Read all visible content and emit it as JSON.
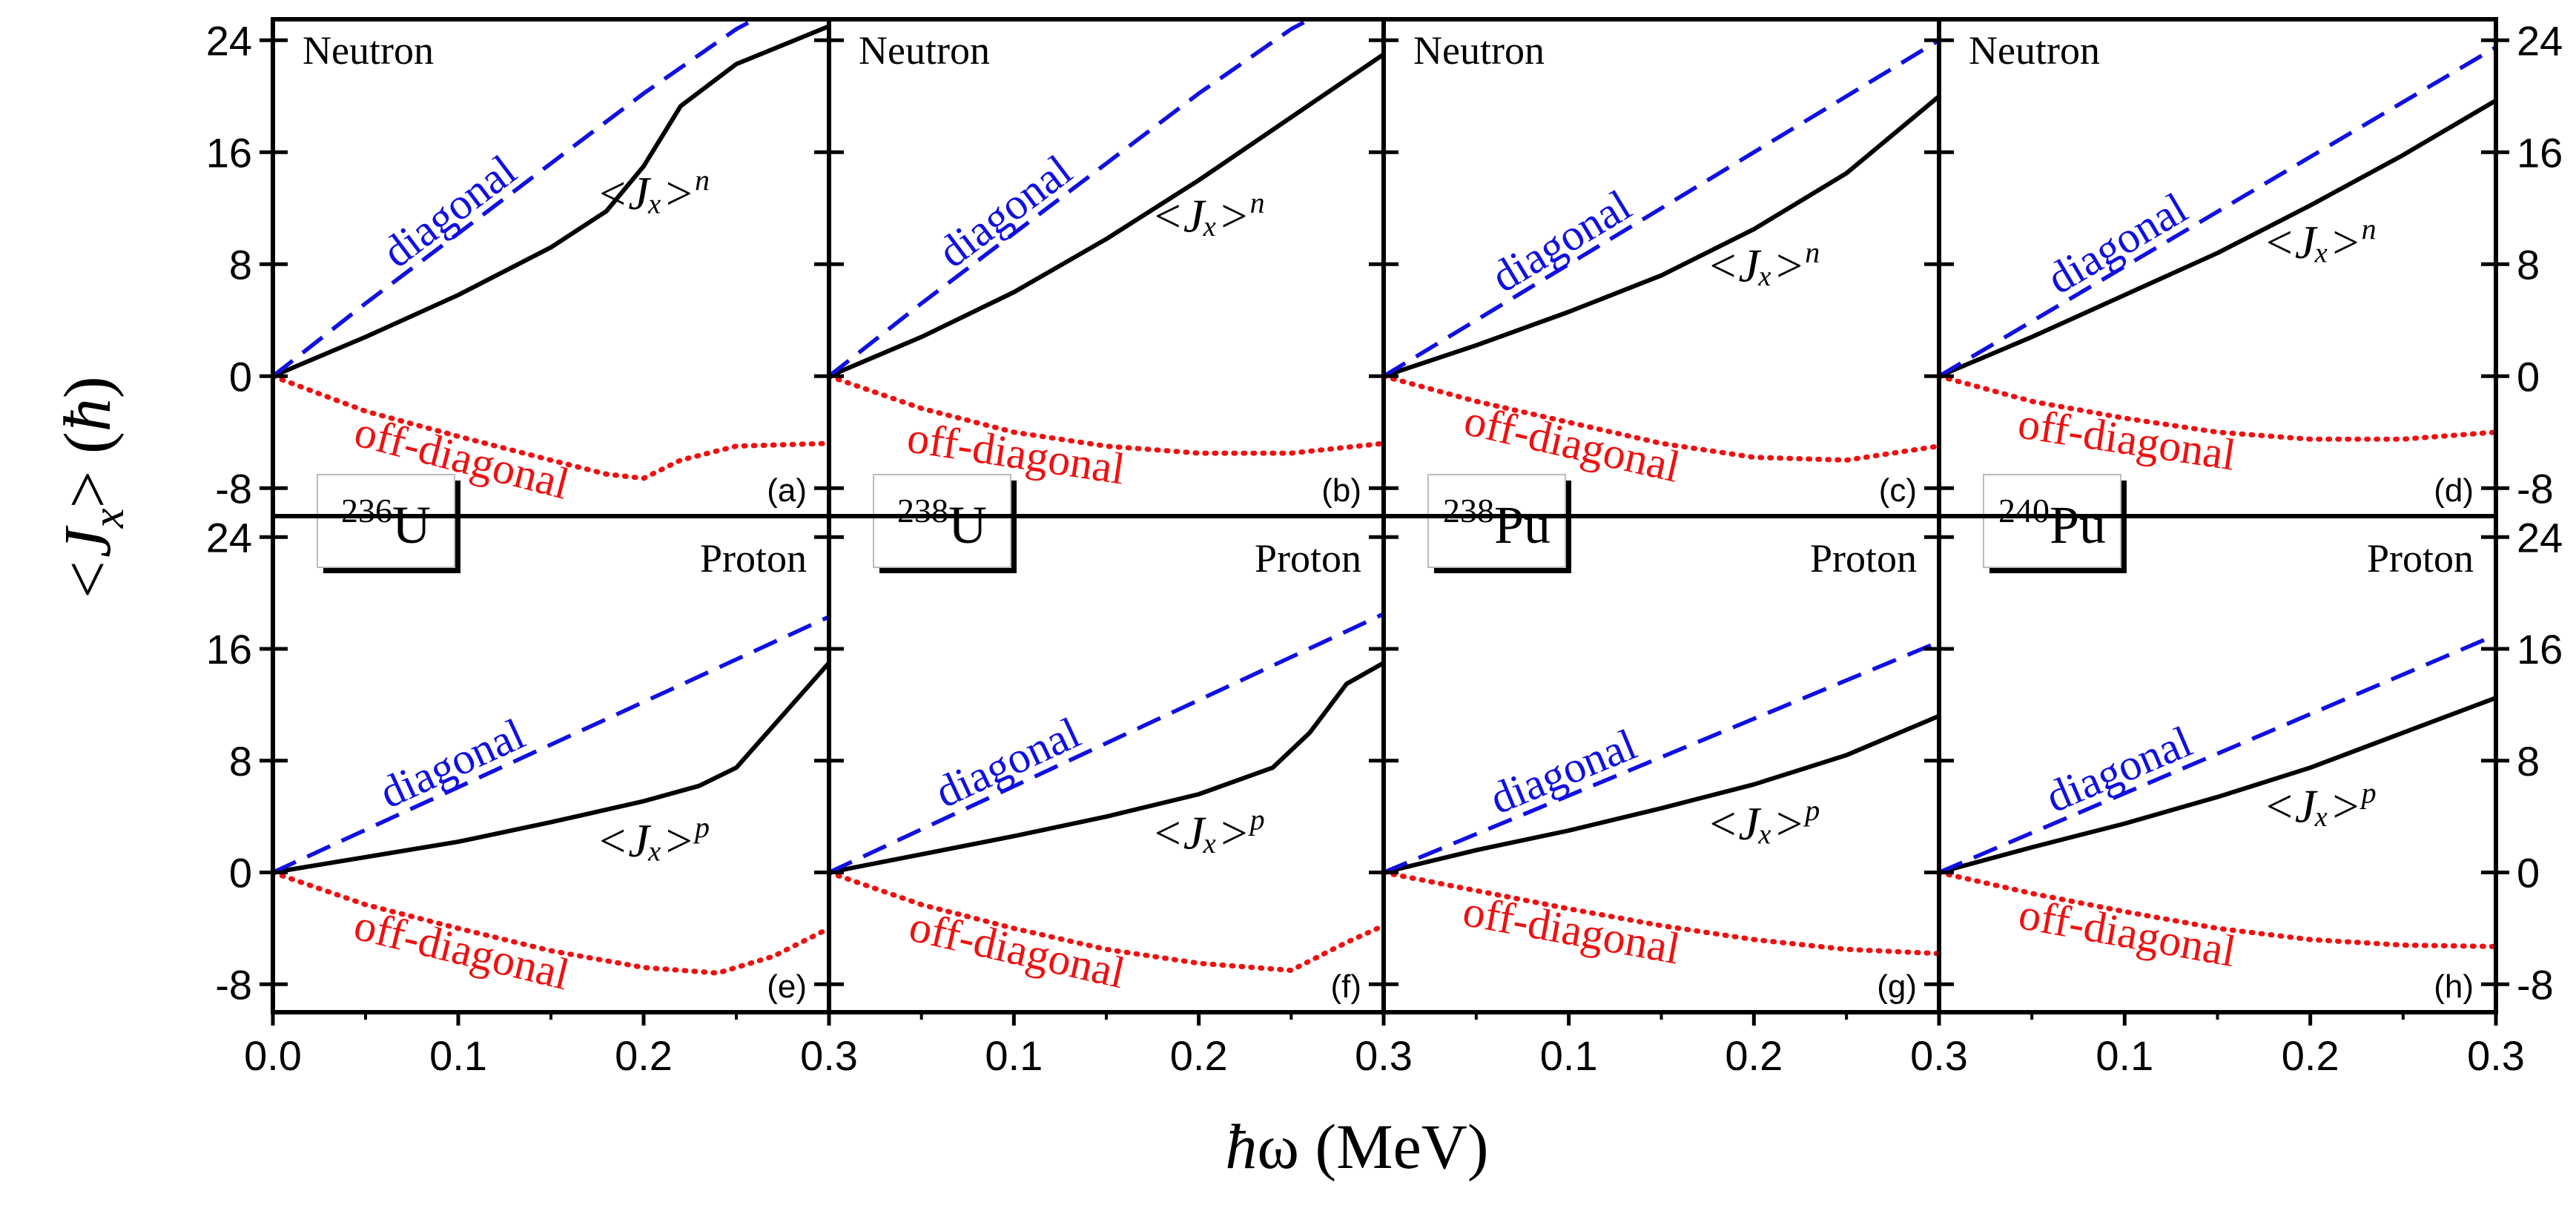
{
  "figure": {
    "y_label_main": "<J",
    "y_label_sub": "x",
    "y_label_end": "> (",
    "y_label_hbar": "ħ",
    "y_label_close": ")",
    "x_label_hbar": "ħ",
    "x_label_rest": "ω (MeV)",
    "colors": {
      "diagonal": "#1010e0",
      "off_diagonal": "#ee1111",
      "total": "#000000",
      "frame": "#000000"
    }
  },
  "chart_data": [
    {
      "type": "line",
      "panel": "(a)",
      "row": "Neutron",
      "nucleus": "236",
      "element": "U",
      "xlim": [
        0,
        0.3
      ],
      "ylim": [
        -10,
        25.5
      ],
      "yticks": [
        -8,
        0,
        8,
        16,
        24
      ],
      "xticks": [
        "0.0",
        "0.1",
        "0.2",
        "0.3"
      ],
      "total_label": "<Jₓ>",
      "total_sup": "n",
      "diag_label": "diagonal",
      "off_label": "off-diagonal",
      "series": [
        {
          "name": "total",
          "x": [
            0,
            0.05,
            0.1,
            0.15,
            0.18,
            0.2,
            0.22,
            0.25,
            0.3
          ],
          "y": [
            0,
            2.8,
            5.8,
            9.2,
            11.8,
            15,
            19.3,
            22.3,
            25
          ]
        },
        {
          "name": "diagonal",
          "x": [
            0,
            0.05,
            0.1,
            0.15,
            0.2,
            0.25,
            0.26
          ],
          "y": [
            0,
            5.2,
            10.2,
            15.2,
            20.2,
            24.8,
            25.5
          ]
        },
        {
          "name": "off_diagonal",
          "x": [
            0,
            0.05,
            0.1,
            0.15,
            0.18,
            0.2,
            0.22,
            0.25,
            0.3
          ],
          "y": [
            0,
            -2.5,
            -4.3,
            -6,
            -7,
            -7.3,
            -6,
            -5,
            -4.8
          ]
        }
      ]
    },
    {
      "type": "line",
      "panel": "(b)",
      "row": "Neutron",
      "nucleus": "238",
      "element": "U",
      "xlim": [
        0,
        0.3
      ],
      "ylim": [
        -10,
        25.5
      ],
      "yticks": [
        -8,
        0,
        8,
        16,
        24
      ],
      "xticks": [
        "0.1",
        "0.2",
        "0.3"
      ],
      "total_label": "<Jₓ>",
      "total_sup": "n",
      "diag_label": "diagonal",
      "off_label": "off-diagonal",
      "series": [
        {
          "name": "total",
          "x": [
            0,
            0.05,
            0.1,
            0.15,
            0.2,
            0.25,
            0.3
          ],
          "y": [
            0,
            2.8,
            6,
            9.8,
            14,
            18.5,
            23
          ]
        },
        {
          "name": "diagonal",
          "x": [
            0,
            0.05,
            0.1,
            0.15,
            0.2,
            0.25,
            0.26
          ],
          "y": [
            0,
            5.2,
            10.2,
            15.2,
            20.2,
            24.8,
            25.5
          ]
        },
        {
          "name": "off_diagonal",
          "x": [
            0,
            0.05,
            0.1,
            0.15,
            0.2,
            0.25,
            0.3
          ],
          "y": [
            0,
            -2.3,
            -4,
            -5,
            -5.5,
            -5.5,
            -4.8
          ]
        }
      ]
    },
    {
      "type": "line",
      "panel": "(c)",
      "row": "Neutron",
      "nucleus": "238",
      "element": "Pu",
      "xlim": [
        0,
        0.3
      ],
      "ylim": [
        -10,
        25.5
      ],
      "yticks": [
        -8,
        0,
        8,
        16,
        24
      ],
      "xticks": [
        "0.1",
        "0.2",
        "0.3"
      ],
      "total_label": "<Jₓ>",
      "total_sup": "n",
      "diag_label": "diagonal",
      "off_label": "off-diagonal",
      "series": [
        {
          "name": "total",
          "x": [
            0,
            0.05,
            0.1,
            0.15,
            0.2,
            0.25,
            0.3
          ],
          "y": [
            0,
            2.2,
            4.6,
            7.2,
            10.5,
            14.5,
            20
          ]
        },
        {
          "name": "diagonal",
          "x": [
            0,
            0.3
          ],
          "y": [
            0,
            24
          ]
        },
        {
          "name": "off_diagonal",
          "x": [
            0,
            0.05,
            0.1,
            0.15,
            0.2,
            0.25,
            0.3
          ],
          "y": [
            0,
            -1.8,
            -3.3,
            -4.8,
            -5.8,
            -6,
            -5
          ]
        }
      ]
    },
    {
      "type": "line",
      "panel": "(d)",
      "row": "Neutron",
      "nucleus": "240",
      "element": "Pu",
      "xlim": [
        0,
        0.3
      ],
      "ylim": [
        -10,
        25.5
      ],
      "yticks": [
        -8,
        0,
        8,
        16,
        24
      ],
      "xticks": [
        "0.1",
        "0.2",
        "0.3"
      ],
      "total_label": "<Jₓ>",
      "total_sup": "n",
      "diag_label": "diagonal",
      "off_label": "off-diagonal",
      "series": [
        {
          "name": "total",
          "x": [
            0,
            0.05,
            0.1,
            0.15,
            0.2,
            0.25,
            0.3
          ],
          "y": [
            0,
            2.8,
            5.8,
            8.8,
            12.2,
            15.8,
            19.7
          ]
        },
        {
          "name": "diagonal",
          "x": [
            0,
            0.3
          ],
          "y": [
            0,
            23.5
          ]
        },
        {
          "name": "off_diagonal",
          "x": [
            0,
            0.05,
            0.1,
            0.15,
            0.2,
            0.25,
            0.3
          ],
          "y": [
            0,
            -1.8,
            -3,
            -4,
            -4.5,
            -4.5,
            -4
          ]
        }
      ]
    },
    {
      "type": "line",
      "panel": "(e)",
      "row": "Proton",
      "nucleus": "236",
      "element": "U",
      "xlim": [
        0,
        0.3
      ],
      "ylim": [
        -10,
        25.5
      ],
      "yticks": [
        -8,
        0,
        8,
        16,
        24
      ],
      "xticks": [
        "0.0",
        "0.1",
        "0.2",
        "0.3"
      ],
      "total_label": "<Jₓ>",
      "total_sup": "p",
      "diag_label": "diagonal",
      "off_label": "off-diagonal",
      "series": [
        {
          "name": "total",
          "x": [
            0,
            0.05,
            0.1,
            0.15,
            0.2,
            0.23,
            0.25,
            0.27,
            0.3
          ],
          "y": [
            0,
            1.1,
            2.2,
            3.6,
            5.1,
            6.2,
            7.5,
            10.5,
            15
          ]
        },
        {
          "name": "diagonal",
          "x": [
            0,
            0.3
          ],
          "y": [
            0,
            18.3
          ]
        },
        {
          "name": "off_diagonal",
          "x": [
            0,
            0.05,
            0.1,
            0.15,
            0.2,
            0.24,
            0.27,
            0.3
          ],
          "y": [
            0,
            -2.3,
            -4,
            -5.6,
            -6.8,
            -7.2,
            -6,
            -4
          ]
        }
      ]
    },
    {
      "type": "line",
      "panel": "(f)",
      "row": "Proton",
      "nucleus": "238",
      "element": "U",
      "xlim": [
        0,
        0.3
      ],
      "ylim": [
        -10,
        25.5
      ],
      "yticks": [
        -8,
        0,
        8,
        16,
        24
      ],
      "xticks": [
        "0.1",
        "0.2",
        "0.3"
      ],
      "total_label": "<Jₓ>",
      "total_sup": "p",
      "diag_label": "diagonal",
      "off_label": "off-diagonal",
      "series": [
        {
          "name": "total",
          "x": [
            0,
            0.05,
            0.1,
            0.15,
            0.2,
            0.24,
            0.26,
            0.28,
            0.3
          ],
          "y": [
            0,
            1.3,
            2.6,
            4,
            5.6,
            7.5,
            10,
            13.5,
            15
          ]
        },
        {
          "name": "diagonal",
          "x": [
            0,
            0.3
          ],
          "y": [
            0,
            18.5
          ]
        },
        {
          "name": "off_diagonal",
          "x": [
            0,
            0.05,
            0.1,
            0.15,
            0.2,
            0.25,
            0.28,
            0.3
          ],
          "y": [
            0,
            -2.3,
            -4,
            -5.5,
            -6.5,
            -7,
            -5,
            -3.8
          ]
        }
      ]
    },
    {
      "type": "line",
      "panel": "(g)",
      "row": "Proton",
      "nucleus": "238",
      "element": "Pu",
      "xlim": [
        0,
        0.3
      ],
      "ylim": [
        -10,
        25.5
      ],
      "yticks": [
        -8,
        0,
        8,
        16,
        24
      ],
      "xticks": [
        "0.1",
        "0.2",
        "0.3"
      ],
      "total_label": "<Jₓ>",
      "total_sup": "p",
      "diag_label": "diagonal",
      "off_label": "off-diagonal",
      "series": [
        {
          "name": "total",
          "x": [
            0,
            0.05,
            0.1,
            0.15,
            0.2,
            0.25,
            0.3
          ],
          "y": [
            0,
            1.6,
            3,
            4.6,
            6.3,
            8.4,
            11.2
          ]
        },
        {
          "name": "diagonal",
          "x": [
            0,
            0.3
          ],
          "y": [
            0,
            16.5
          ]
        },
        {
          "name": "off_diagonal",
          "x": [
            0,
            0.05,
            0.1,
            0.15,
            0.2,
            0.25,
            0.3
          ],
          "y": [
            0,
            -1.3,
            -2.6,
            -3.8,
            -4.8,
            -5.5,
            -5.8
          ]
        }
      ]
    },
    {
      "type": "line",
      "panel": "(h)",
      "row": "Proton",
      "nucleus": "240",
      "element": "Pu",
      "xlim": [
        0,
        0.3
      ],
      "ylim": [
        -10,
        25.5
      ],
      "yticks": [
        -8,
        0,
        8,
        16,
        24
      ],
      "xticks": [
        "0.1",
        "0.2",
        "0.3"
      ],
      "total_label": "<Jₓ>",
      "total_sup": "p",
      "diag_label": "diagonal",
      "off_label": "off-diagonal",
      "series": [
        {
          "name": "total",
          "x": [
            0,
            0.05,
            0.1,
            0.15,
            0.2,
            0.25,
            0.3
          ],
          "y": [
            0,
            1.8,
            3.5,
            5.4,
            7.5,
            10,
            12.5
          ]
        },
        {
          "name": "diagonal",
          "x": [
            0,
            0.3
          ],
          "y": [
            0,
            17
          ]
        },
        {
          "name": "off_diagonal",
          "x": [
            0,
            0.05,
            0.1,
            0.15,
            0.2,
            0.25,
            0.3
          ],
          "y": [
            0,
            -1.5,
            -2.8,
            -4,
            -4.8,
            -5.2,
            -5.3
          ]
        }
      ]
    }
  ]
}
